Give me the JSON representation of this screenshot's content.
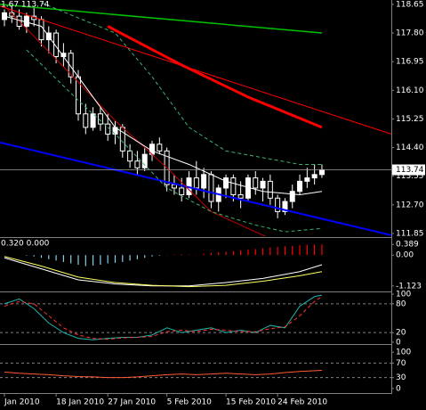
{
  "chart_data": [
    {
      "type": "candlestick",
      "title": "1.67 113.74",
      "xlim": [
        -0.6,
        52.4
      ],
      "ylim": [
        111.77,
        118.78
      ],
      "yticks": [
        118.65,
        {
          "value": 117.8,
          "label": "117.80"
        },
        116.95,
        {
          "value": 116.1,
          "label": "116.10"
        },
        115.25,
        {
          "value": 114.4,
          "label": "114.40"
        },
        113.55,
        {
          "value": 112.7,
          "label": "112.70"
        },
        111.85
      ],
      "xticks": [
        {
          "value": 0,
          "label": "Jan 2010"
        },
        {
          "value": 7,
          "label": "18 Jan 2010"
        },
        {
          "value": 14,
          "label": "27 Jan 2010"
        },
        {
          "value": 22,
          "label": "5 Feb 2010"
        },
        {
          "value": 30,
          "label": "15 Feb 2010"
        },
        {
          "value": 37,
          "label": "24 Feb 2010"
        }
      ],
      "last_price": 113.74,
      "color_up": "#ffffff",
      "color_down": "#000000",
      "wick_color": "#ffffff",
      "open": [
        118.2,
        118.4,
        118.3,
        118.0,
        118.3,
        118.2,
        117.6,
        117.8,
        117.1,
        117.2,
        116.5,
        115.4,
        115.0,
        115.4,
        115.1,
        114.8,
        115.0,
        114.3,
        114.0,
        113.8,
        114.2,
        114.5,
        114.3,
        113.3,
        113.2,
        113.0,
        113.5,
        113.2,
        113.6,
        112.8,
        113.2,
        113.5,
        113.0,
        112.9,
        113.5,
        113.2,
        113.4,
        112.9,
        112.5,
        112.8,
        113.1,
        113.4,
        113.5,
        113.6
      ],
      "high": [
        118.5,
        118.6,
        118.5,
        118.4,
        118.6,
        118.3,
        118.0,
        117.9,
        117.5,
        117.3,
        116.7,
        115.7,
        115.6,
        115.6,
        115.4,
        115.2,
        115.1,
        114.5,
        114.3,
        114.4,
        114.6,
        114.7,
        114.4,
        113.6,
        113.5,
        113.7,
        114.0,
        113.8,
        113.7,
        113.3,
        113.6,
        113.6,
        113.4,
        113.6,
        113.7,
        113.5,
        113.6,
        113.0,
        112.9,
        113.3,
        113.6,
        113.8,
        113.9,
        113.9
      ],
      "low": [
        118.0,
        118.1,
        117.9,
        117.8,
        118.0,
        117.4,
        117.2,
        116.9,
        116.8,
        116.3,
        115.2,
        114.8,
        114.9,
        114.9,
        114.6,
        114.5,
        114.1,
        113.8,
        113.6,
        113.7,
        114.0,
        114.2,
        113.1,
        113.0,
        112.8,
        112.9,
        113.0,
        112.9,
        112.6,
        112.5,
        112.9,
        112.8,
        112.6,
        112.8,
        113.0,
        112.8,
        112.7,
        112.3,
        112.4,
        112.6,
        113.0,
        113.2,
        113.3,
        113.5
      ],
      "close": [
        118.4,
        118.3,
        118.0,
        118.3,
        118.2,
        117.6,
        117.8,
        117.1,
        117.2,
        116.5,
        115.4,
        115.0,
        115.4,
        115.1,
        114.8,
        115.0,
        114.3,
        114.0,
        113.8,
        114.2,
        114.5,
        114.3,
        113.3,
        113.2,
        113.0,
        113.5,
        113.2,
        113.6,
        112.8,
        113.2,
        113.5,
        113.0,
        112.9,
        113.5,
        113.2,
        113.4,
        112.9,
        112.5,
        112.8,
        113.1,
        113.4,
        113.5,
        113.6,
        113.74
      ],
      "series": [
        {
          "color": "#00c000",
          "width": 1.5,
          "x": [
            -0.6,
            43
          ],
          "values": [
            118.65,
            117.8
          ]
        },
        {
          "color": "#ff0000",
          "width": 1,
          "x": [
            -0.6,
            52.4
          ],
          "values": [
            118.6,
            114.8
          ]
        },
        {
          "color": "#0000ff",
          "width": 2,
          "x": [
            -0.6,
            52.4
          ],
          "values": [
            114.55,
            111.8
          ]
        },
        {
          "color": "#ff0000",
          "width": 3,
          "x": [
            14,
            24,
            33,
            43
          ],
          "values": [
            118.0,
            116.85,
            115.9,
            115.0
          ]
        },
        {
          "color": "#c00000",
          "width": 1,
          "x": [
            0,
            8,
            15,
            22,
            28,
            36
          ],
          "values": [
            118.6,
            116.8,
            115.2,
            113.8,
            112.5,
            111.7
          ]
        },
        {
          "color": "#ffffff",
          "width": 1,
          "x": [
            0,
            5,
            10,
            15,
            20,
            25,
            30,
            35,
            40,
            43
          ],
          "values": [
            118.3,
            118.0,
            116.5,
            115.0,
            114.3,
            113.9,
            113.4,
            113.1,
            113.0,
            113.1
          ]
        },
        {
          "color": "#3cb371",
          "width": 1,
          "dash": true,
          "x": [
            5,
            15,
            20,
            25,
            30,
            35,
            40,
            43
          ],
          "values": [
            118.7,
            117.8,
            116.5,
            115.0,
            114.3,
            114.1,
            113.9,
            113.9
          ]
        },
        {
          "color": "#3cb371",
          "width": 1,
          "dash": true,
          "x": [
            3,
            10,
            15,
            22,
            28,
            34,
            38,
            43
          ],
          "values": [
            117.3,
            115.8,
            114.8,
            113.2,
            112.5,
            112.1,
            111.9,
            112.0
          ]
        }
      ]
    },
    {
      "type": "bar",
      "title": "0.320 0.000",
      "xlim": [
        -0.6,
        52.4
      ],
      "ylim": [
        -1.29,
        0.59
      ],
      "yticks": [
        0.389,
        {
          "value": 0,
          "label": "0.00"
        },
        -1.123
      ],
      "color_positive": "#ff0000",
      "color_negative": "#87ceeb",
      "values": [
        0,
        0,
        0,
        -0.02,
        -0.05,
        -0.1,
        -0.15,
        -0.2,
        -0.25,
        -0.3,
        -0.35,
        -0.4,
        -0.38,
        -0.35,
        -0.3,
        -0.28,
        -0.25,
        -0.2,
        -0.15,
        -0.1,
        -0.05,
        -0.02,
        0.01,
        0.02,
        0.03,
        0.02,
        0.01,
        0.05,
        0.08,
        0.1,
        0.12,
        0.15,
        0.18,
        0.2,
        0.22,
        0.25,
        0.28,
        0.3,
        0.32,
        0.34,
        0.36,
        0.38,
        0.38,
        0.389
      ],
      "series": [
        {
          "color": "#ffffff",
          "width": 1,
          "x": [
            0,
            5,
            10,
            15,
            20,
            25,
            30,
            35,
            40,
            43
          ],
          "values": [
            -0.1,
            -0.5,
            -0.9,
            -1.05,
            -1.12,
            -1.12,
            -1.0,
            -0.85,
            -0.6,
            -0.35
          ]
        },
        {
          "color": "#ffff66",
          "width": 1,
          "x": [
            0,
            5,
            10,
            15,
            20,
            25,
            30,
            35,
            40,
            43
          ],
          "values": [
            -0.05,
            -0.4,
            -0.8,
            -1.0,
            -1.1,
            -1.15,
            -1.1,
            -0.95,
            -0.75,
            -0.6
          ]
        }
      ]
    },
    {
      "type": "line",
      "xlim": [
        -0.6,
        52.4
      ],
      "ylim": [
        -2,
        102
      ],
      "yticks": [
        100,
        80,
        20,
        0
      ],
      "levels": [
        80,
        20
      ],
      "series": [
        {
          "color": "#20b2aa",
          "width": 1,
          "x": [
            0,
            2,
            4,
            6,
            8,
            10,
            12,
            14,
            16,
            18,
            20,
            22,
            24,
            26,
            28,
            30,
            32,
            34,
            36,
            38,
            40,
            42,
            43
          ],
          "values": [
            80,
            90,
            70,
            40,
            20,
            8,
            5,
            8,
            10,
            10,
            15,
            30,
            20,
            25,
            30,
            20,
            25,
            20,
            35,
            30,
            75,
            95,
            98
          ]
        },
        {
          "color": "#ff3030",
          "width": 1,
          "dash": true,
          "x": [
            0,
            2,
            4,
            6,
            8,
            10,
            12,
            14,
            16,
            18,
            20,
            22,
            24,
            26,
            28,
            30,
            32,
            34,
            36,
            38,
            40,
            42,
            43
          ],
          "values": [
            75,
            85,
            80,
            55,
            30,
            15,
            8,
            6,
            9,
            10,
            12,
            22,
            25,
            22,
            27,
            25,
            22,
            22,
            28,
            32,
            55,
            85,
            95
          ]
        }
      ]
    },
    {
      "type": "line",
      "xlim": [
        -0.6,
        52.4
      ],
      "ylim": [
        -12.5,
        117.5
      ],
      "yticks": [
        100,
        70,
        30,
        0
      ],
      "levels": [
        70,
        30
      ],
      "series": [
        {
          "color": "#ff5a36",
          "width": 1,
          "x": [
            0,
            2,
            4,
            6,
            8,
            10,
            12,
            14,
            16,
            18,
            20,
            22,
            24,
            26,
            28,
            30,
            32,
            34,
            36,
            38,
            40,
            43
          ],
          "values": [
            45,
            42,
            40,
            38,
            35,
            33,
            32,
            30,
            30,
            32,
            35,
            38,
            40,
            38,
            40,
            42,
            40,
            38,
            40,
            44,
            47,
            50
          ]
        }
      ]
    }
  ]
}
